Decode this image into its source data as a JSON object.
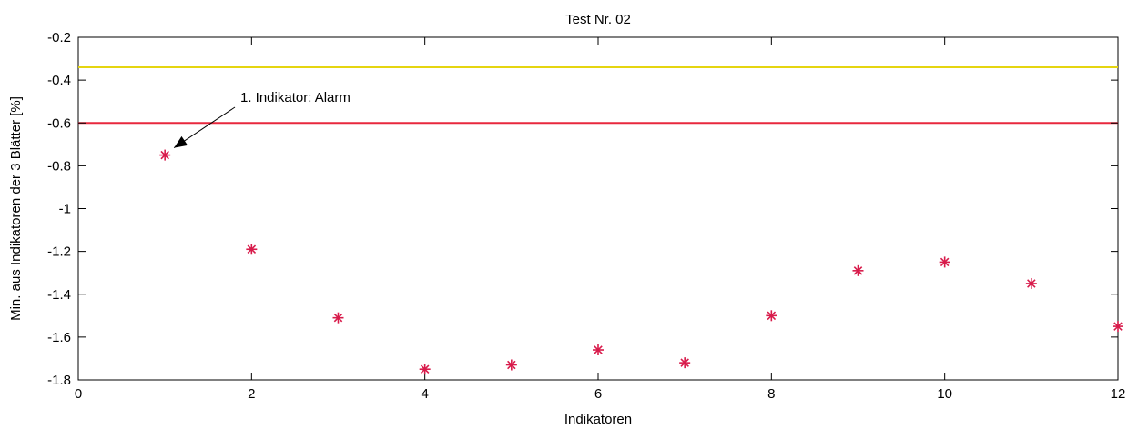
{
  "chart_data": {
    "type": "scatter",
    "title": "Test Nr. 02",
    "xlabel": "Indikatoren",
    "ylabel": "Min. aus Indikatoren der 3 Blätter [%]",
    "xlim": [
      0,
      12
    ],
    "ylim": [
      -1.8,
      -0.2
    ],
    "xticks": [
      0,
      2,
      4,
      6,
      8,
      10,
      12
    ],
    "xtick_labels": [
      "0",
      "2",
      "4",
      "6",
      "8",
      "10",
      "12"
    ],
    "yticks": [
      -0.2,
      -0.4,
      -0.6,
      -0.8,
      -1.0,
      -1.2,
      -1.4,
      -1.6,
      -1.8
    ],
    "ytick_labels": [
      "-0.2",
      "-0.4",
      "-0.6",
      "-0.8",
      "-1",
      "-1.2",
      "-1.4",
      "-1.6",
      "-1.8"
    ],
    "grid": false,
    "series": [
      {
        "marker": "star",
        "color": "#d81b4b",
        "x": [
          1,
          2,
          3,
          4,
          5,
          6,
          7,
          8,
          9,
          10,
          11,
          12
        ],
        "y": [
          -0.75,
          -1.19,
          -1.51,
          -1.75,
          -1.73,
          -1.66,
          -1.72,
          -1.5,
          -1.29,
          -1.25,
          -1.35,
          -1.55
        ]
      }
    ],
    "reference_lines": [
      {
        "y": -0.34,
        "color": "#e5d510"
      },
      {
        "y": -0.6,
        "color": "#e8283e"
      }
    ],
    "annotation": {
      "text": "1. Indikator: Alarm",
      "target_x": 1,
      "target_y": -0.75
    }
  }
}
